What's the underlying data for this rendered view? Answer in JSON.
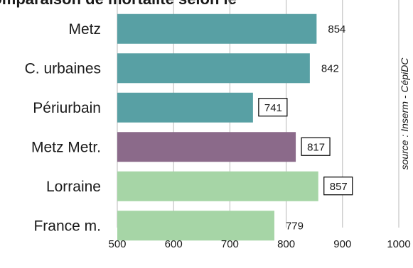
{
  "chart_data": {
    "type": "bar",
    "orientation": "horizontal",
    "title": "",
    "xlabel": "",
    "ylabel": "",
    "categories": [
      "Metz",
      "C. urbaines",
      "Périurbain",
      "Metz Metr.",
      "Lorraine",
      "France m."
    ],
    "values": [
      854,
      842,
      741,
      817,
      857,
      779
    ],
    "bar_colors": [
      "#58a0a4",
      "#58a0a4",
      "#58a0a4",
      "#8b6a8a",
      "#a6d5a6",
      "#a6d5a6"
    ],
    "boxed_labels": [
      false,
      false,
      true,
      true,
      true,
      false
    ],
    "xlim": [
      500,
      1000
    ],
    "xticks": [
      500,
      600,
      700,
      800,
      900,
      1000
    ],
    "grid": true,
    "source_note": "source : Inserm - CépiDC",
    "truncated_title": "comparaison de mortalité selon le"
  }
}
